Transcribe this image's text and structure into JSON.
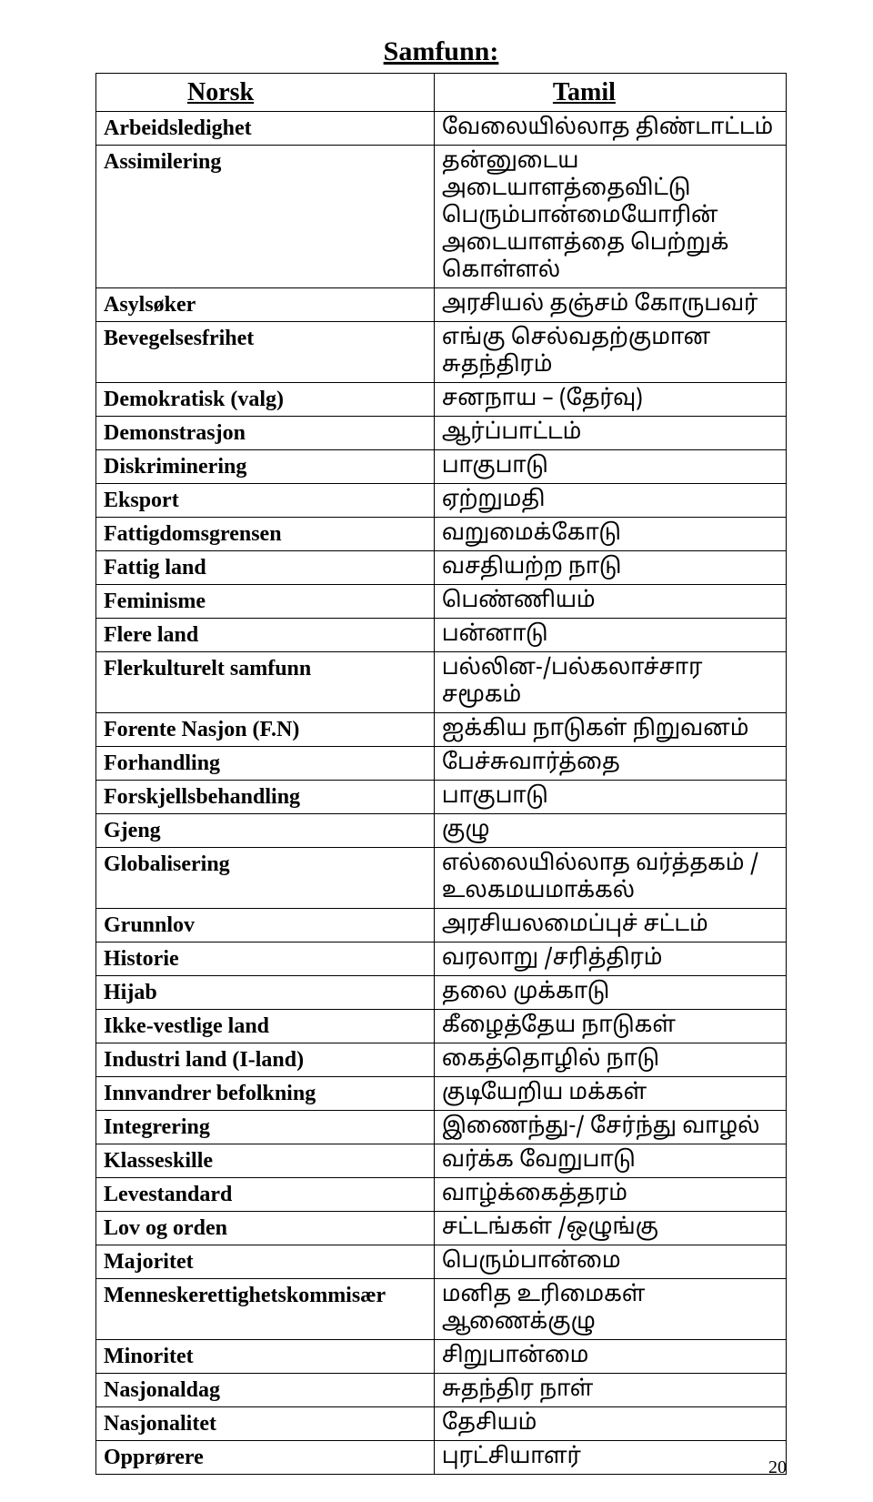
{
  "title": "Samfunn:",
  "headers": {
    "norsk": "Norsk",
    "tamil": "Tamil"
  },
  "rows": [
    {
      "norsk": "Arbeidsledighet",
      "tamil": "வேலையில்லாத திண்டாட்டம்"
    },
    {
      "norsk": "Assimilering",
      "tamil": "தன்னுடைய அடையாளத்தைவிட்டு பெரும்பான்மையோரின் அடையாளத்தை பெற்றுக் கொள்ளல்"
    },
    {
      "norsk": "Asylsøker",
      "tamil": "அரசியல் தஞ்சம் கோருபவர்"
    },
    {
      "norsk": "Bevegelsesfrihet",
      "tamil": "எங்கு செல்வதற்குமான சுதந்திரம்"
    },
    {
      "norsk": "Demokratisk (valg)",
      "tamil": "சனநாய – (தேர்வு)"
    },
    {
      "norsk": "Demonstrasjon",
      "tamil": "ஆர்ப்பாட்டம்"
    },
    {
      "norsk": "Diskriminering",
      "tamil": "பாகுபாடு"
    },
    {
      "norsk": "Eksport",
      "tamil": "ஏற்றுமதி"
    },
    {
      "norsk": "Fattigdomsgrensen",
      "tamil": "வறுமைக்கோடு"
    },
    {
      "norsk": "Fattig land",
      "tamil": "வசதியற்ற நாடு"
    },
    {
      "norsk": "Feminisme",
      "tamil": "பெண்ணியம்"
    },
    {
      "norsk": "Flere land",
      "tamil": "பன்னாடு"
    },
    {
      "norsk": "Flerkulturelt samfunn",
      "tamil": "பல்லின-/பல்கலாச்சார சமூகம்"
    },
    {
      "norsk": "Forente Nasjon (F.N)",
      "tamil": "ஐக்கிய நாடுகள் நிறுவனம்"
    },
    {
      "norsk": "Forhandling",
      "tamil": "பேச்சுவார்த்தை"
    },
    {
      "norsk": "Forskjellsbehandling",
      "tamil": "பாகுபாடு"
    },
    {
      "norsk": "Gjeng",
      "tamil": "குழு"
    },
    {
      "norsk": "Globalisering",
      "tamil": "எல்லையில்லாத வர்த்தகம் / உலகமயமாக்கல்"
    },
    {
      "norsk": "Grunnlov",
      "tamil": "அரசியலமைப்புச் சட்டம்"
    },
    {
      "norsk": "Historie",
      "tamil": "வரலாறு /சரித்திரம்"
    },
    {
      "norsk": "Hijab",
      "tamil": "தலை முக்காடு"
    },
    {
      "norsk": "Ikke-vestlige land",
      "tamil": "கீழைத்தேய நாடுகள்"
    },
    {
      "norsk": "Industri land (I-land)",
      "tamil": "கைத்தொழில் நாடு"
    },
    {
      "norsk": "Innvandrer befolkning",
      "tamil": "குடியேறிய மக்கள்"
    },
    {
      "norsk": "Integrering",
      "tamil": "இணைந்து-/ சேர்ந்து வாழல்"
    },
    {
      "norsk": "Klasseskille",
      "tamil": "வர்க்க வேறுபாடு"
    },
    {
      "norsk": "Levestandard",
      "tamil": "வாழ்க்கைத்தரம்"
    },
    {
      "norsk": "Lov og orden",
      "tamil": "சட்டங்கள் /ஒழுங்கு"
    },
    {
      "norsk": "Majoritet",
      "tamil": "பெரும்பான்மை"
    },
    {
      "norsk": "Menneskerettighetskommisær",
      "tamil": "மனித உரிமைகள் ஆணைக்குழு"
    },
    {
      "norsk": "Minoritet",
      "tamil": "சிறுபான்மை"
    },
    {
      "norsk": "Nasjonaldag",
      "tamil": "சுதந்திர நாள்"
    },
    {
      "norsk": "Nasjonalitet",
      "tamil": "தேசியம்"
    },
    {
      "norsk": "Opprørere",
      "tamil": "புரட்சியாளர்"
    }
  ],
  "page_number": "20"
}
